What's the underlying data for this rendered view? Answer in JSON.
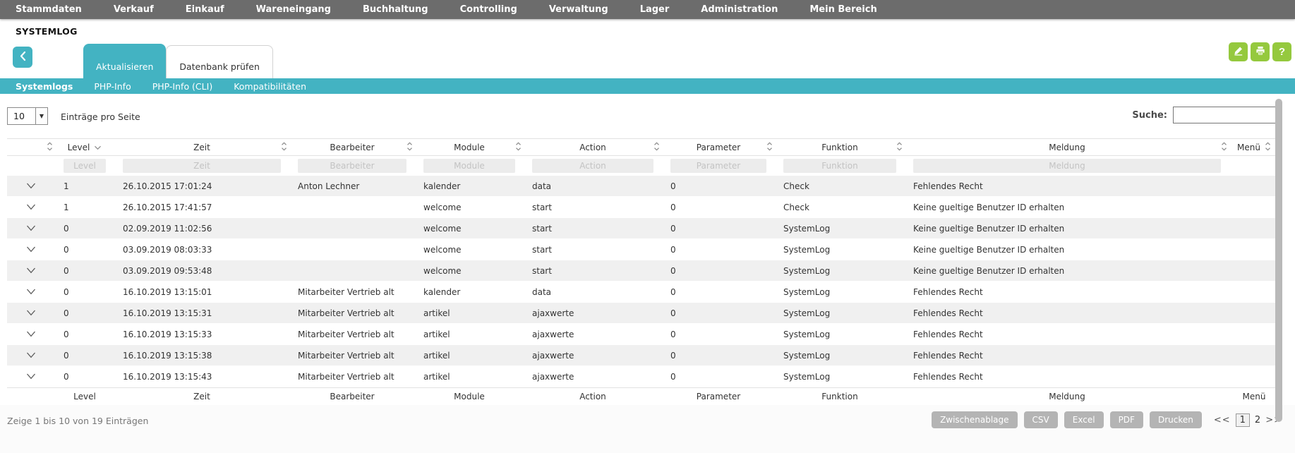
{
  "nav": {
    "items": [
      "Stammdaten",
      "Verkauf",
      "Einkauf",
      "Wareneingang",
      "Buchhaltung",
      "Controlling",
      "Verwaltung",
      "Lager",
      "Administration",
      "Mein Bereich"
    ]
  },
  "page": {
    "title": "SYSTEMLOG"
  },
  "tabs": [
    {
      "label": "Aktualisieren",
      "active": true
    },
    {
      "label": "Datenbank prüfen",
      "active": false
    }
  ],
  "header_actions": [
    {
      "name": "edit",
      "icon": "pencil-icon"
    },
    {
      "name": "print",
      "icon": "printer-icon"
    },
    {
      "name": "help",
      "icon": "question-icon",
      "glyph": "?"
    }
  ],
  "subtabs": [
    {
      "label": "Systemlogs",
      "active": true
    },
    {
      "label": "PHP-Info",
      "active": false
    },
    {
      "label": "PHP-Info (CLI)",
      "active": false
    },
    {
      "label": "Kompatibilitäten",
      "active": false
    }
  ],
  "toolbar": {
    "page_size": "10",
    "page_size_label": "Einträge pro Seite",
    "search_label": "Suche:",
    "search_value": ""
  },
  "table": {
    "columns": [
      "Level",
      "Zeit",
      "Bearbeiter",
      "Module",
      "Action",
      "Parameter",
      "Funktion",
      "Meldung",
      "Menü"
    ],
    "sorted_column": "Level",
    "filter_placeholders": [
      "Level",
      "Zeit",
      "Bearbeiter",
      "Module",
      "Action",
      "Parameter",
      "Funktion",
      "Meldung"
    ],
    "rows": [
      [
        "1",
        "26.10.2015 17:01:24",
        "Anton Lechner",
        "kalender",
        "data",
        "0",
        "Check",
        "Fehlendes Recht"
      ],
      [
        "1",
        "26.10.2015 17:41:57",
        "",
        "welcome",
        "start",
        "0",
        "Check",
        "Keine gueltige Benutzer ID erhalten"
      ],
      [
        "0",
        "02.09.2019 11:02:56",
        "",
        "welcome",
        "start",
        "0",
        "SystemLog",
        "Keine gueltige Benutzer ID erhalten"
      ],
      [
        "0",
        "03.09.2019 08:03:33",
        "",
        "welcome",
        "start",
        "0",
        "SystemLog",
        "Keine gueltige Benutzer ID erhalten"
      ],
      [
        "0",
        "03.09.2019 09:53:48",
        "",
        "welcome",
        "start",
        "0",
        "SystemLog",
        "Keine gueltige Benutzer ID erhalten"
      ],
      [
        "0",
        "16.10.2019 13:15:01",
        "Mitarbeiter Vertrieb alt",
        "kalender",
        "data",
        "0",
        "SystemLog",
        "Fehlendes Recht"
      ],
      [
        "0",
        "16.10.2019 13:15:31",
        "Mitarbeiter Vertrieb alt",
        "artikel",
        "ajaxwerte",
        "0",
        "SystemLog",
        "Fehlendes Recht"
      ],
      [
        "0",
        "16.10.2019 13:15:33",
        "Mitarbeiter Vertrieb alt",
        "artikel",
        "ajaxwerte",
        "0",
        "SystemLog",
        "Fehlendes Recht"
      ],
      [
        "0",
        "16.10.2019 13:15:38",
        "Mitarbeiter Vertrieb alt",
        "artikel",
        "ajaxwerte",
        "0",
        "SystemLog",
        "Fehlendes Recht"
      ],
      [
        "0",
        "16.10.2019 13:15:43",
        "Mitarbeiter Vertrieb alt",
        "artikel",
        "ajaxwerte",
        "0",
        "SystemLog",
        "Fehlendes Recht"
      ]
    ]
  },
  "footer": {
    "info": "Zeige 1 bis 10 von 19 Einträgen",
    "buttons": [
      "Zwischenablage",
      "CSV",
      "Excel",
      "PDF",
      "Drucken"
    ],
    "pagination": {
      "prev": "<<",
      "pages": [
        "1",
        "2"
      ],
      "current": "1",
      "next": ">>"
    }
  },
  "colors": {
    "teal": "#43b3c2",
    "green": "#95c93e",
    "nav_gray": "#6c6c6c",
    "stripe": "#f0f0f0"
  }
}
